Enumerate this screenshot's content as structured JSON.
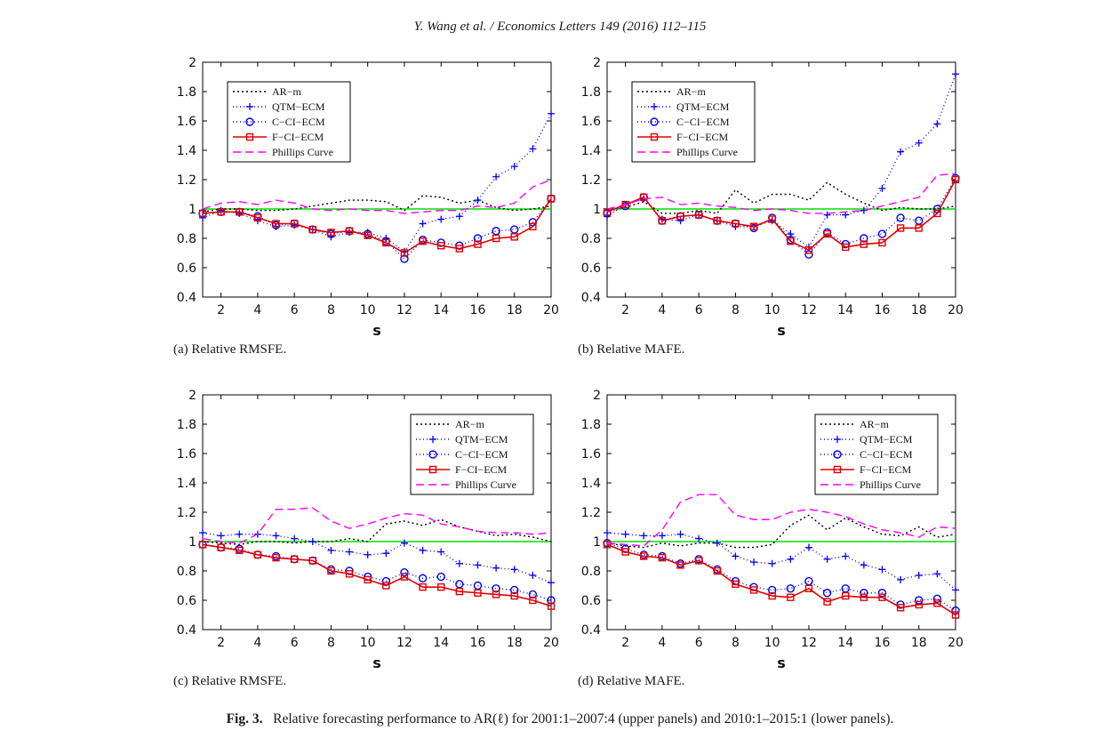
{
  "header": {
    "running_head": "Y. Wang et al. / Economics Letters 149 (2016) 112–115"
  },
  "caption": {
    "label": "Fig. 3.",
    "text": "Relative forecasting performance to AR(ℓ) for 2001:1–2007:4 (upper panels) and 2010:1–2015:1 (lower panels)."
  },
  "style": {
    "colors": {
      "AR-m": "#000000",
      "QTM-ECM": "#0000ff",
      "C-CI-ECM": "#0000ff",
      "F-CI-ECM": "#e00000",
      "Phillips Curve": "#ff00ff",
      "reference": "#00dd00"
    },
    "markers": {
      "AR-m": "none",
      "QTM-ECM": "plus",
      "C-CI-ECM": "circle",
      "F-CI-ECM": "square",
      "Phillips Curve": "none"
    }
  },
  "chart_data": [
    {
      "type": "line",
      "subcaption": "(a) Relative RMSFE.",
      "xlabel": "s",
      "xlim": [
        1,
        20
      ],
      "ylim": [
        0.4,
        2
      ],
      "xticks": [
        2,
        4,
        6,
        8,
        10,
        12,
        14,
        16,
        18,
        20
      ],
      "yticks": [
        0.4,
        0.6,
        0.8,
        1,
        1.2,
        1.4,
        1.6,
        1.8,
        2
      ],
      "legend_position": "top-left",
      "reference_line": 1,
      "x": [
        1,
        2,
        3,
        4,
        5,
        6,
        7,
        8,
        9,
        10,
        11,
        12,
        13,
        14,
        15,
        16,
        17,
        18,
        19,
        20
      ],
      "series": [
        {
          "name": "AR−m",
          "values": [
            0.98,
            1.0,
            1.0,
            0.99,
            0.99,
            1.0,
            1.02,
            1.04,
            1.06,
            1.06,
            1.05,
            0.99,
            1.09,
            1.08,
            1.04,
            1.06,
            1.01,
            0.99,
            1.0,
            1.02
          ]
        },
        {
          "name": "QTM−ECM",
          "values": [
            0.94,
            0.99,
            0.97,
            0.92,
            0.88,
            0.89,
            0.86,
            0.81,
            0.84,
            0.84,
            0.8,
            0.71,
            0.9,
            0.93,
            0.95,
            1.06,
            1.22,
            1.29,
            1.41,
            1.65
          ]
        },
        {
          "name": "C−CI−ECM",
          "values": [
            0.97,
            0.98,
            0.98,
            0.95,
            0.89,
            0.9,
            0.86,
            0.83,
            0.85,
            0.83,
            0.78,
            0.66,
            0.79,
            0.77,
            0.75,
            0.8,
            0.85,
            0.86,
            0.91,
            1.07
          ]
        },
        {
          "name": "F−CI−ECM",
          "values": [
            0.97,
            0.98,
            0.98,
            0.94,
            0.9,
            0.9,
            0.86,
            0.84,
            0.85,
            0.82,
            0.77,
            0.7,
            0.78,
            0.75,
            0.73,
            0.76,
            0.8,
            0.81,
            0.88,
            1.07
          ]
        },
        {
          "name": "Phillips Curve",
          "values": [
            1.0,
            1.04,
            1.05,
            1.03,
            1.06,
            1.04,
            1.0,
            0.99,
            1.0,
            0.99,
            0.99,
            0.97,
            0.98,
            0.99,
            0.99,
            1.02,
            1.01,
            1.04,
            1.15,
            1.2
          ]
        }
      ]
    },
    {
      "type": "line",
      "subcaption": "(b) Relative MAFE.",
      "xlabel": "s",
      "xlim": [
        1,
        20
      ],
      "ylim": [
        0.4,
        2
      ],
      "xticks": [
        2,
        4,
        6,
        8,
        10,
        12,
        14,
        16,
        18,
        20
      ],
      "yticks": [
        0.4,
        0.6,
        0.8,
        1,
        1.2,
        1.4,
        1.6,
        1.8,
        2
      ],
      "legend_position": "top-left",
      "reference_line": 1,
      "x": [
        1,
        2,
        3,
        4,
        5,
        6,
        7,
        8,
        9,
        10,
        11,
        12,
        13,
        14,
        15,
        16,
        17,
        18,
        19,
        20
      ],
      "series": [
        {
          "name": "AR−m",
          "values": [
            1.0,
            1.01,
            1.05,
            0.97,
            0.97,
            0.99,
            0.97,
            1.13,
            1.04,
            1.1,
            1.1,
            1.06,
            1.18,
            1.1,
            1.04,
            0.99,
            1.01,
            1.0,
            1.0,
            1.02
          ]
        },
        {
          "name": "QTM−ECM",
          "values": [
            0.95,
            1.03,
            1.07,
            0.93,
            0.92,
            0.96,
            0.92,
            0.88,
            0.88,
            0.92,
            0.83,
            0.74,
            0.96,
            0.96,
            0.99,
            1.14,
            1.39,
            1.45,
            1.58,
            1.92
          ]
        },
        {
          "name": "C−CI−ECM",
          "values": [
            0.97,
            1.02,
            1.08,
            0.92,
            0.95,
            0.96,
            0.92,
            0.9,
            0.87,
            0.94,
            0.79,
            0.69,
            0.84,
            0.76,
            0.8,
            0.83,
            0.94,
            0.92,
            1.0,
            1.21
          ]
        },
        {
          "name": "F−CI−ECM",
          "values": [
            0.98,
            1.03,
            1.08,
            0.92,
            0.95,
            0.96,
            0.92,
            0.9,
            0.88,
            0.93,
            0.78,
            0.72,
            0.83,
            0.74,
            0.76,
            0.77,
            0.87,
            0.87,
            0.97,
            1.2
          ]
        },
        {
          "name": "Phillips Curve",
          "values": [
            1.0,
            1.03,
            1.07,
            1.08,
            1.03,
            1.04,
            1.02,
            1.01,
            0.99,
            1.0,
            0.99,
            0.97,
            0.97,
            0.98,
            0.99,
            1.02,
            1.05,
            1.08,
            1.23,
            1.24
          ]
        }
      ]
    },
    {
      "type": "line",
      "subcaption": "(c) Relative RMSFE.",
      "xlabel": "s",
      "xlim": [
        1,
        20
      ],
      "ylim": [
        0.4,
        2
      ],
      "xticks": [
        2,
        4,
        6,
        8,
        10,
        12,
        14,
        16,
        18,
        20
      ],
      "yticks": [
        0.4,
        0.6,
        0.8,
        1,
        1.2,
        1.4,
        1.6,
        1.8,
        2
      ],
      "legend_position": "top-right",
      "reference_line": 1,
      "x": [
        1,
        2,
        3,
        4,
        5,
        6,
        7,
        8,
        9,
        10,
        11,
        12,
        13,
        14,
        15,
        16,
        17,
        18,
        19,
        20
      ],
      "series": [
        {
          "name": "AR−m",
          "values": [
            1.0,
            0.99,
            0.98,
            1.0,
            1.0,
            0.99,
            1.0,
            1.0,
            1.02,
            1.0,
            1.12,
            1.14,
            1.11,
            1.15,
            1.1,
            1.07,
            1.04,
            1.05,
            1.03,
            1.0
          ]
        },
        {
          "name": "QTM−ECM",
          "values": [
            1.06,
            1.04,
            1.05,
            1.05,
            1.04,
            1.02,
            1.0,
            0.94,
            0.93,
            0.91,
            0.92,
            0.99,
            0.94,
            0.93,
            0.85,
            0.84,
            0.82,
            0.81,
            0.77,
            0.72
          ]
        },
        {
          "name": "C−CI−ECM",
          "values": [
            0.98,
            0.96,
            0.95,
            0.91,
            0.9,
            0.88,
            0.87,
            0.81,
            0.8,
            0.76,
            0.73,
            0.79,
            0.75,
            0.76,
            0.71,
            0.7,
            0.68,
            0.67,
            0.64,
            0.6
          ]
        },
        {
          "name": "F−CI−ECM",
          "values": [
            0.98,
            0.96,
            0.94,
            0.91,
            0.89,
            0.88,
            0.87,
            0.8,
            0.78,
            0.74,
            0.7,
            0.76,
            0.69,
            0.69,
            0.66,
            0.65,
            0.64,
            0.63,
            0.6,
            0.56
          ]
        },
        {
          "name": "Phillips Curve",
          "values": [
            1.02,
            1.0,
            0.99,
            1.05,
            1.22,
            1.22,
            1.23,
            1.14,
            1.09,
            1.12,
            1.16,
            1.19,
            1.18,
            1.12,
            1.1,
            1.07,
            1.06,
            1.06,
            1.05,
            1.06
          ]
        }
      ]
    },
    {
      "type": "line",
      "subcaption": "(d) Relative MAFE.",
      "xlabel": "s",
      "xlim": [
        1,
        20
      ],
      "ylim": [
        0.4,
        2
      ],
      "xticks": [
        2,
        4,
        6,
        8,
        10,
        12,
        14,
        16,
        18,
        20
      ],
      "yticks": [
        0.4,
        0.6,
        0.8,
        1,
        1.2,
        1.4,
        1.6,
        1.8,
        2
      ],
      "legend_position": "top-right",
      "reference_line": 1,
      "x": [
        1,
        2,
        3,
        4,
        5,
        6,
        7,
        8,
        9,
        10,
        11,
        12,
        13,
        14,
        15,
        16,
        17,
        18,
        19,
        20
      ],
      "series": [
        {
          "name": "AR−m",
          "values": [
            0.99,
            0.97,
            0.96,
            0.99,
            0.97,
            0.99,
            0.99,
            0.96,
            0.96,
            0.98,
            1.11,
            1.18,
            1.08,
            1.16,
            1.1,
            1.05,
            1.04,
            1.1,
            1.03,
            1.05
          ]
        },
        {
          "name": "QTM−ECM",
          "values": [
            1.06,
            1.05,
            1.04,
            1.04,
            1.05,
            1.02,
            0.99,
            0.9,
            0.86,
            0.85,
            0.88,
            0.96,
            0.88,
            0.9,
            0.84,
            0.81,
            0.74,
            0.77,
            0.78,
            0.67
          ]
        },
        {
          "name": "C−CI−ECM",
          "values": [
            0.99,
            0.95,
            0.91,
            0.9,
            0.85,
            0.88,
            0.81,
            0.73,
            0.69,
            0.67,
            0.68,
            0.73,
            0.65,
            0.68,
            0.65,
            0.65,
            0.57,
            0.6,
            0.61,
            0.53
          ]
        },
        {
          "name": "F−CI−ECM",
          "values": [
            0.98,
            0.93,
            0.9,
            0.89,
            0.84,
            0.87,
            0.8,
            0.71,
            0.67,
            0.63,
            0.62,
            0.68,
            0.59,
            0.63,
            0.62,
            0.62,
            0.55,
            0.57,
            0.58,
            0.5
          ]
        },
        {
          "name": "Phillips Curve",
          "values": [
            0.99,
            0.98,
            0.97,
            1.08,
            1.27,
            1.32,
            1.32,
            1.18,
            1.15,
            1.15,
            1.2,
            1.22,
            1.2,
            1.17,
            1.12,
            1.08,
            1.06,
            1.03,
            1.1,
            1.09
          ]
        }
      ]
    }
  ]
}
